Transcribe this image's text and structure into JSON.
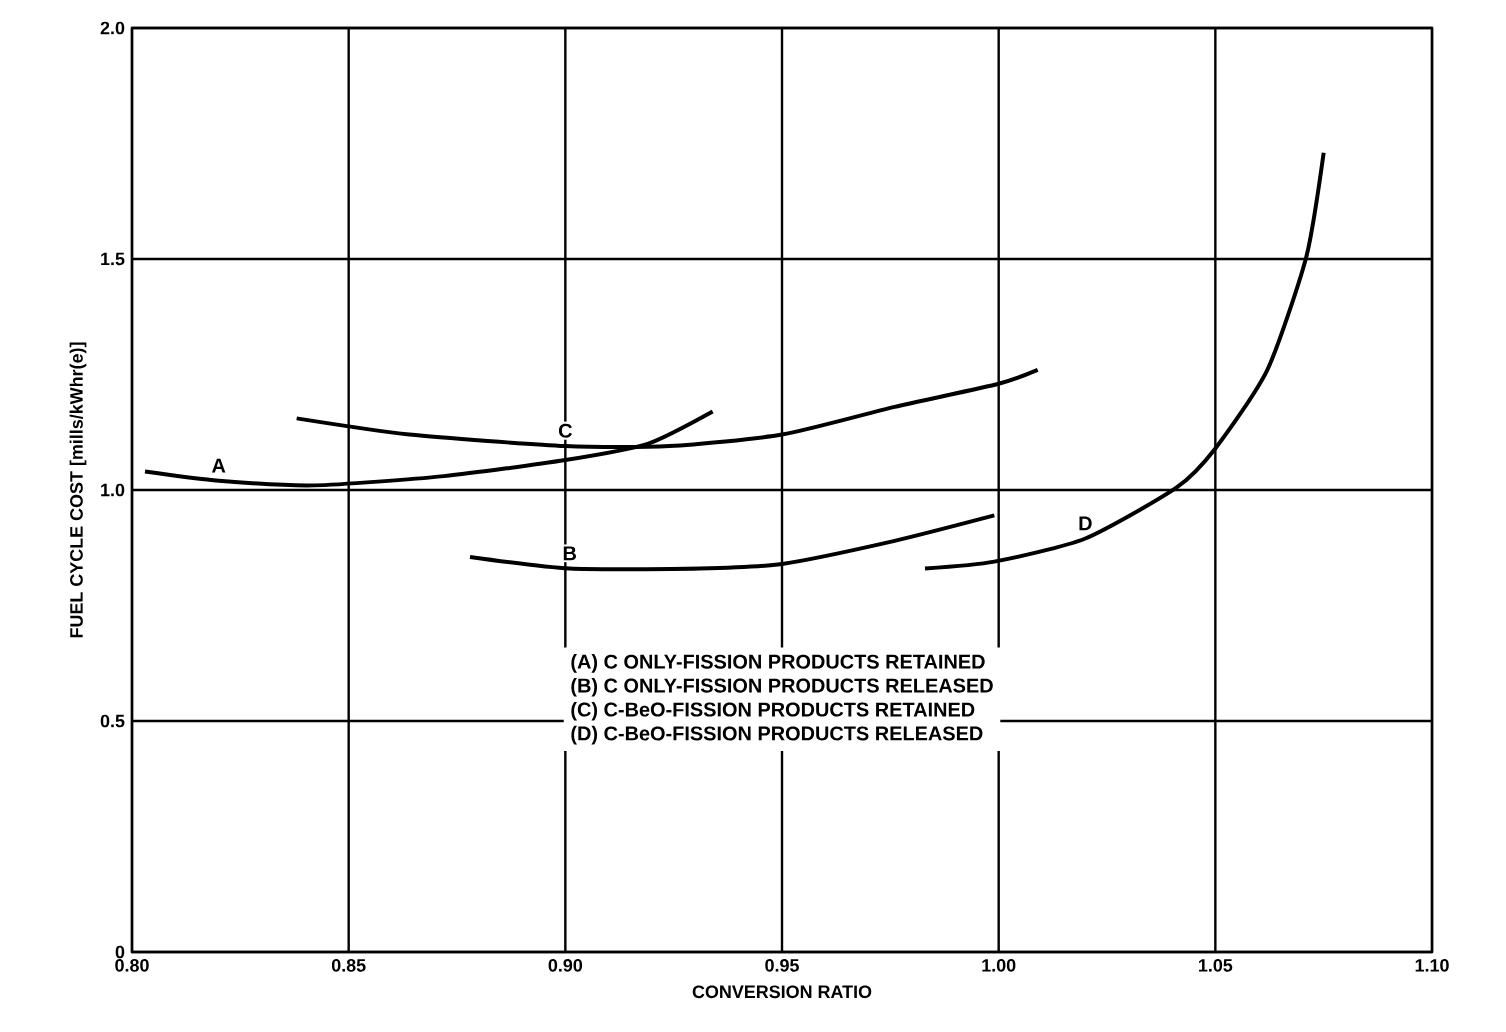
{
  "chart_data": {
    "type": "line",
    "xlabel": "CONVERSION RATIO",
    "ylabel": "FUEL CYCLE COST [mills/kWhr(e)]",
    "xlim": [
      0.8,
      1.1
    ],
    "ylim": [
      0,
      2.0
    ],
    "xticks": [
      {
        "value": 0.8,
        "label": "0.80"
      },
      {
        "value": 0.85,
        "label": "0.85"
      },
      {
        "value": 0.9,
        "label": "0.90"
      },
      {
        "value": 0.95,
        "label": "0.95"
      },
      {
        "value": 1.0,
        "label": "1.00"
      },
      {
        "value": 1.05,
        "label": "1.05"
      },
      {
        "value": 1.1,
        "label": "1.10"
      }
    ],
    "yticks": [
      0,
      {
        "value": 0.5,
        "label": "0.5"
      },
      {
        "value": 1.0,
        "label": "1.0"
      },
      {
        "value": 1.5,
        "label": "1.5"
      },
      {
        "value": 2.0,
        "label": "2.0"
      }
    ],
    "grid": true,
    "marker": "none",
    "line_style": "solid",
    "series": [
      {
        "name": "A",
        "color": "#000000",
        "x": [
          0.803,
          0.82,
          0.842,
          0.872,
          0.9,
          0.919,
          0.934
        ],
        "values": [
          1.04,
          1.02,
          1.01,
          1.03,
          1.065,
          1.1,
          1.17
        ]
      },
      {
        "name": "B",
        "color": "#000000",
        "x": [
          0.878,
          0.901,
          0.931,
          0.95,
          0.976,
          0.999
        ],
        "values": [
          0.855,
          0.83,
          0.83,
          0.84,
          0.89,
          0.945
        ]
      },
      {
        "name": "C",
        "color": "#000000",
        "x": [
          0.838,
          0.864,
          0.9,
          0.924,
          0.95,
          0.976,
          1.0,
          1.009
        ],
        "values": [
          1.155,
          1.12,
          1.095,
          1.095,
          1.12,
          1.18,
          1.23,
          1.26
        ]
      },
      {
        "name": "D",
        "color": "#000000",
        "x": [
          0.983,
          0.999,
          1.02,
          1.041,
          1.05,
          1.062,
          1.071,
          1.075
        ],
        "values": [
          0.83,
          0.845,
          0.895,
          1.005,
          1.09,
          1.26,
          1.505,
          1.73
        ]
      }
    ],
    "annotations": [
      "(A) C ONLY-FISSION PRODUCTS RETAINED",
      "(B) C ONLY-FISSION PRODUCTS RELEASED",
      "(C) C-BeO-FISSION PRODUCTS RETAINED",
      "(D) C-BeO-FISSION PRODUCTS RELEASED"
    ]
  }
}
